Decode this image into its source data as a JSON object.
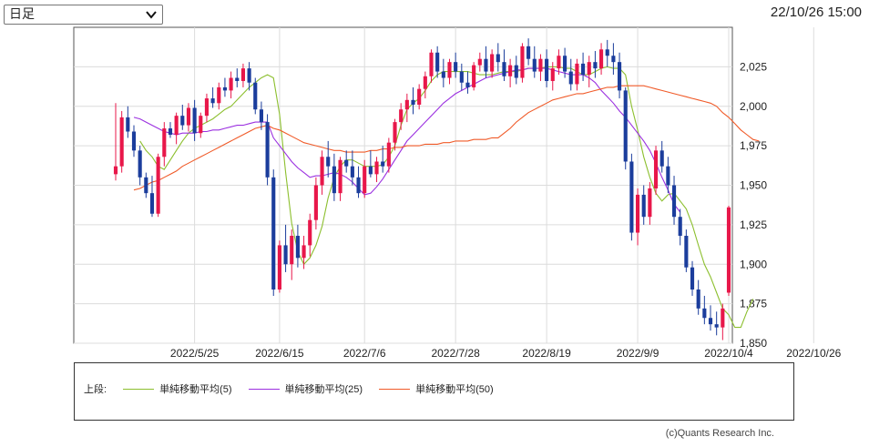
{
  "header": {
    "period_select": "日足",
    "timestamp": "22/10/26 15:00"
  },
  "legend": {
    "prefix": "上段:",
    "items": [
      {
        "label": "単純移動平均(5)",
        "color": "#8cbf2e"
      },
      {
        "label": "単純移動平均(25)",
        "color": "#9b30e0"
      },
      {
        "label": "単純移動平均(50)",
        "color": "#f05a28"
      }
    ]
  },
  "copyright": "(c)Quants Research Inc.",
  "colors": {
    "up": "#e8174a",
    "down": "#1b3d9c"
  },
  "chart_data": {
    "type": "candlestick",
    "x_ticks": [
      "2022/5/25",
      "2022/6/15",
      "2022/7/6",
      "2022/7/28",
      "2022/8/19",
      "2022/9/9",
      "2022/10/4",
      "2022/10/26"
    ],
    "x_tick_index": [
      13,
      27,
      41,
      56,
      71,
      86,
      101,
      115
    ],
    "y_ticks": [
      1850,
      1875,
      1900,
      1925,
      1950,
      1975,
      2000,
      2025
    ],
    "ylim": [
      1850,
      2050
    ],
    "grid": true,
    "series": [
      {
        "name": "単純移動平均(5)",
        "color": "#8cbf2e",
        "values": [
          null,
          null,
          null,
          null,
          1978,
          1972,
          1968,
          1962,
          1960,
          1966,
          1972,
          1978,
          1983,
          1986,
          1988,
          1990,
          1992,
          1995,
          1998,
          2000,
          2004,
          2008,
          2012,
          2015,
          2018,
          2020,
          2018,
          1995,
          1958,
          1926,
          1908,
          1900,
          1904,
          1912,
          1924,
          1942,
          1955,
          1962,
          1966,
          1966,
          1964,
          1962,
          1962,
          1962,
          1963,
          1968,
          1975,
          1988,
          1998,
          2002,
          2005,
          2010,
          2016,
          2020,
          2022,
          2022,
          2022,
          2022,
          2022,
          2021,
          2020,
          2020,
          2020,
          2021,
          2022,
          2022,
          2022,
          2023,
          2024,
          2024,
          2024,
          2025,
          2025,
          2025,
          2024,
          2024,
          2022,
          2020,
          2020,
          2022,
          2024,
          2025,
          2024,
          2024,
          2020,
          2000,
          1985,
          1968,
          1955,
          1945,
          1940,
          1944,
          1945,
          1940,
          1935,
          1925,
          1912,
          1900,
          1892,
          1882,
          1872,
          1868,
          1860,
          1860,
          1870,
          1878
        ]
      },
      {
        "name": "単純移動平均(25)",
        "color": "#9b30e0",
        "values": [
          null,
          null,
          null,
          1993,
          1992,
          1990,
          1988,
          1986,
          1984,
          1983,
          1982,
          1983,
          1983,
          1983,
          1984,
          1984,
          1985,
          1985,
          1986,
          1987,
          1988,
          1988,
          1989,
          1990,
          1990,
          1990,
          1980,
          1975,
          1970,
          1965,
          1961,
          1958,
          1955,
          1956,
          1956,
          1957,
          1958,
          1957,
          1955,
          1952,
          1948,
          1944,
          1945,
          1949,
          1954,
          1960,
          1966,
          1972,
          1978,
          1982,
          1986,
          1990,
          1994,
          1998,
          2002,
          2005,
          2008,
          2010,
          2012,
          2014,
          2016,
          2018,
          2019,
          2020,
          2021,
          2022,
          2023,
          2023,
          2024,
          2024,
          2024,
          2024,
          2023,
          2022,
          2021,
          2020,
          2020,
          2020,
          2018,
          2015,
          2010,
          2006,
          2002,
          1997,
          1993,
          1988,
          1983,
          1978,
          1972,
          1964,
          1955,
          1947,
          1938,
          1933
        ]
      },
      {
        "name": "単純移動平均(50)",
        "color": "#f05a28",
        "values": [
          null,
          null,
          null,
          1947,
          1948,
          1950,
          1952,
          1953,
          1955,
          1957,
          1959,
          1962,
          1964,
          1966,
          1968,
          1970,
          1972,
          1974,
          1976,
          1978,
          1980,
          1982,
          1984,
          1986,
          1987,
          1988,
          1986,
          1985,
          1983,
          1981,
          1979,
          1977,
          1976,
          1975,
          1974,
          1973,
          1972,
          1972,
          1971,
          1971,
          1971,
          1971,
          1972,
          1972,
          1973,
          1973,
          1974,
          1974,
          1975,
          1975,
          1975,
          1976,
          1976,
          1976,
          1977,
          1977,
          1978,
          1978,
          1978,
          1979,
          1979,
          1979,
          1980,
          1980,
          1983,
          1986,
          1990,
          1993,
          1996,
          1998,
          2000,
          2002,
          2004,
          2005,
          2006,
          2007,
          2008,
          2008,
          2009,
          2010,
          2011,
          2012,
          2012,
          2013,
          2013,
          2013,
          2013,
          2013,
          2012,
          2011,
          2010,
          2009,
          2008,
          2007,
          2006,
          2005,
          2004,
          2003,
          2002,
          2000,
          1996,
          1993,
          1989,
          1985,
          1982,
          1979,
          1978
        ]
      }
    ],
    "candles": [
      [
        1957,
        2002,
        1953,
        1962
      ],
      [
        1962,
        1997,
        1958,
        1993
      ],
      [
        1993,
        2000,
        1980,
        1984
      ],
      [
        1984,
        1988,
        1968,
        1972
      ],
      [
        1972,
        1975,
        1950,
        1955
      ],
      [
        1955,
        1958,
        1942,
        1945
      ],
      [
        1945,
        1956,
        1930,
        1932
      ],
      [
        1932,
        1970,
        1930,
        1968
      ],
      [
        1968,
        1990,
        1962,
        1986
      ],
      [
        1986,
        1990,
        1980,
        1982
      ],
      [
        1982,
        1996,
        1976,
        1994
      ],
      [
        1994,
        2001,
        1985,
        1988
      ],
      [
        1988,
        2002,
        1984,
        1999
      ],
      [
        1999,
        2004,
        1978,
        1983
      ],
      [
        1983,
        1996,
        1980,
        1994
      ],
      [
        1994,
        2008,
        1990,
        2005
      ],
      [
        2005,
        2012,
        1999,
        2002
      ],
      [
        2002,
        2015,
        1998,
        2012
      ],
      [
        2012,
        2018,
        2006,
        2010
      ],
      [
        2010,
        2022,
        2005,
        2018
      ],
      [
        2018,
        2024,
        2012,
        2016
      ],
      [
        2016,
        2027,
        2012,
        2024
      ],
      [
        2024,
        2028,
        2010,
        2015
      ],
      [
        2015,
        2018,
        1995,
        1998
      ],
      [
        1998,
        2003,
        1985,
        1990
      ],
      [
        1990,
        1995,
        1950,
        1955
      ],
      [
        1955,
        1960,
        1880,
        1884
      ],
      [
        1884,
        1915,
        1882,
        1912
      ],
      [
        1912,
        1925,
        1895,
        1900
      ],
      [
        1900,
        1922,
        1890,
        1918
      ],
      [
        1918,
        1925,
        1898,
        1904
      ],
      [
        1904,
        1918,
        1897,
        1912
      ],
      [
        1912,
        1932,
        1905,
        1928
      ],
      [
        1928,
        1955,
        1922,
        1950
      ],
      [
        1950,
        1972,
        1944,
        1968
      ],
      [
        1968,
        1978,
        1955,
        1962
      ],
      [
        1962,
        1970,
        1940,
        1945
      ],
      [
        1945,
        1968,
        1940,
        1966
      ],
      [
        1966,
        1972,
        1958,
        1962
      ],
      [
        1962,
        1972,
        1950,
        1955
      ],
      [
        1955,
        1962,
        1942,
        1945
      ],
      [
        1945,
        1966,
        1942,
        1962
      ],
      [
        1962,
        1972,
        1955,
        1957
      ],
      [
        1957,
        1968,
        1952,
        1965
      ],
      [
        1965,
        1975,
        1958,
        1962
      ],
      [
        1962,
        1980,
        1958,
        1977
      ],
      [
        1977,
        1992,
        1972,
        1990
      ],
      [
        1990,
        2002,
        1985,
        1998
      ],
      [
        1998,
        2008,
        1990,
        2004
      ],
      [
        2004,
        2012,
        1995,
        2001
      ],
      [
        2001,
        2014,
        1998,
        2011
      ],
      [
        2011,
        2022,
        2005,
        2019
      ],
      [
        2019,
        2036,
        2015,
        2034
      ],
      [
        2034,
        2038,
        2018,
        2022
      ],
      [
        2022,
        2030,
        2012,
        2018
      ],
      [
        2018,
        2030,
        2014,
        2028
      ],
      [
        2028,
        2034,
        2018,
        2022
      ],
      [
        2022,
        2027,
        2010,
        2015
      ],
      [
        2015,
        2022,
        2008,
        2012
      ],
      [
        2012,
        2028,
        2010,
        2026
      ],
      [
        2026,
        2034,
        2022,
        2030
      ],
      [
        2030,
        2038,
        2018,
        2022
      ],
      [
        2022,
        2036,
        2018,
        2033
      ],
      [
        2033,
        2040,
        2022,
        2028
      ],
      [
        2028,
        2036,
        2016,
        2019
      ],
      [
        2019,
        2030,
        2012,
        2026
      ],
      [
        2026,
        2032,
        2014,
        2018
      ],
      [
        2018,
        2040,
        2015,
        2038
      ],
      [
        2038,
        2043,
        2026,
        2030
      ],
      [
        2030,
        2038,
        2018,
        2022
      ],
      [
        2022,
        2033,
        2016,
        2030
      ],
      [
        2030,
        2036,
        2012,
        2016
      ],
      [
        2016,
        2028,
        2010,
        2024
      ],
      [
        2024,
        2036,
        2020,
        2032
      ],
      [
        2032,
        2037,
        2018,
        2022
      ],
      [
        2022,
        2030,
        2010,
        2014
      ],
      [
        2014,
        2030,
        2010,
        2027
      ],
      [
        2027,
        2034,
        2016,
        2020
      ],
      [
        2020,
        2032,
        2012,
        2028
      ],
      [
        2028,
        2035,
        2018,
        2024
      ],
      [
        2024,
        2040,
        2020,
        2036
      ],
      [
        2036,
        2042,
        2025,
        2032
      ],
      [
        2032,
        2040,
        2020,
        2028
      ],
      [
        2028,
        2034,
        2005,
        2010
      ],
      [
        2010,
        2012,
        1960,
        1965
      ],
      [
        1965,
        1970,
        1915,
        1920
      ],
      [
        1920,
        1948,
        1912,
        1944
      ],
      [
        1944,
        1950,
        1925,
        1930
      ],
      [
        1930,
        1952,
        1925,
        1948
      ],
      [
        1948,
        1975,
        1944,
        1972
      ],
      [
        1972,
        1978,
        1958,
        1962
      ],
      [
        1962,
        1968,
        1945,
        1950
      ],
      [
        1950,
        1956,
        1925,
        1930
      ],
      [
        1930,
        1935,
        1912,
        1918
      ],
      [
        1918,
        1922,
        1895,
        1898
      ],
      [
        1898,
        1902,
        1880,
        1884
      ],
      [
        1884,
        1890,
        1868,
        1872
      ],
      [
        1872,
        1880,
        1862,
        1866
      ],
      [
        1866,
        1874,
        1858,
        1862
      ],
      [
        1862,
        1870,
        1855,
        1860
      ],
      [
        1860,
        1875,
        1852,
        1872
      ],
      [
        1882,
        1937,
        1880,
        1936
      ]
    ]
  }
}
